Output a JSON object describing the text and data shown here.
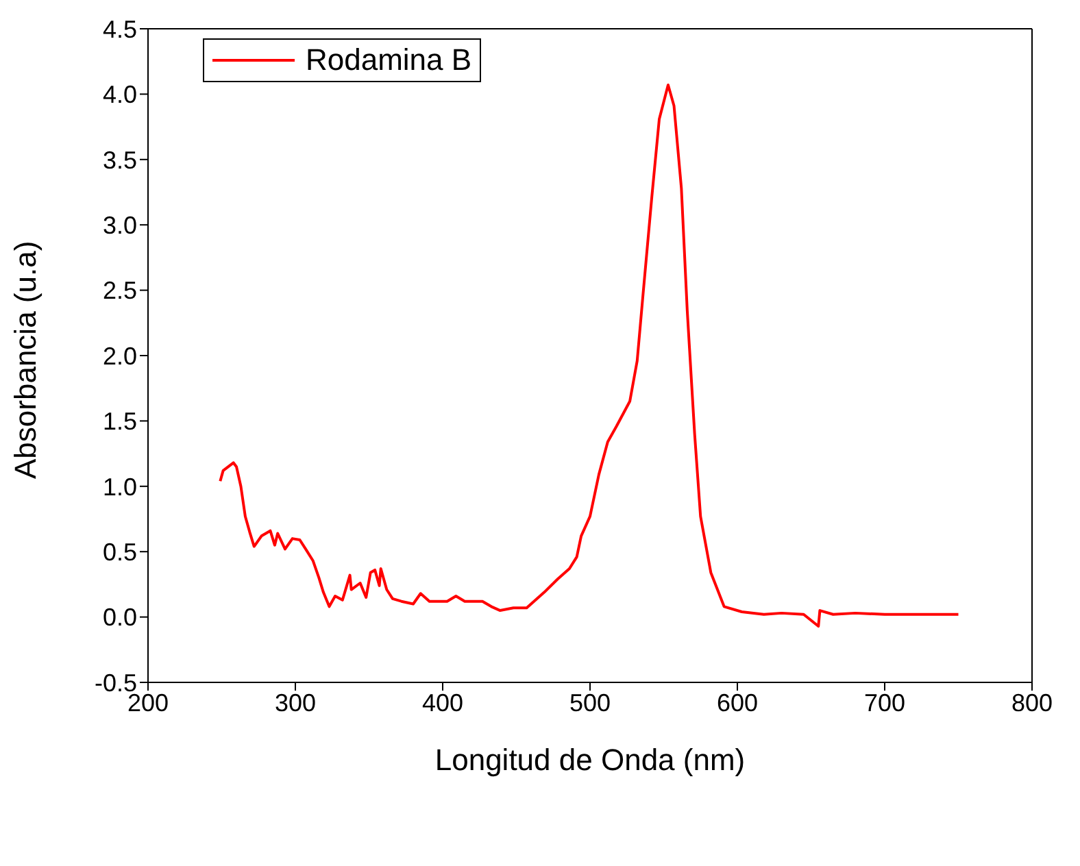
{
  "chart_data": {
    "type": "line",
    "xlabel": "Longitud de Onda (nm)",
    "ylabel": "Absorbancia (u.a)",
    "xlim": [
      200,
      800
    ],
    "xticks": [
      200,
      300,
      400,
      500,
      600,
      700,
      800
    ],
    "ylim": [
      -0.5,
      4.5
    ],
    "yticks": [
      -0.5,
      {
        "value": 0,
        "label": "0.0"
      },
      0.5,
      {
        "value": 1,
        "label": "1.0"
      },
      1.5,
      {
        "value": 2,
        "label": "2.0"
      },
      2.5,
      {
        "value": 3,
        "label": "3.0"
      },
      3.5,
      {
        "value": 4,
        "label": "4.0"
      },
      4.5
    ],
    "grid": false,
    "legend": "top left",
    "marker": "none",
    "line_style": "solid",
    "x": [
      249,
      251,
      258,
      260,
      263,
      266,
      269,
      272,
      277,
      283,
      286,
      288,
      293,
      298,
      303,
      307,
      312,
      316,
      319,
      323,
      327,
      332,
      337,
      338,
      344,
      348,
      351,
      354,
      357,
      358,
      362,
      366,
      372,
      380,
      385,
      391,
      403,
      409,
      415,
      427,
      433,
      439,
      448,
      457,
      463,
      469,
      478,
      486,
      491,
      494,
      500,
      506,
      512,
      518,
      527,
      532,
      536,
      542,
      547,
      553,
      557,
      562,
      566,
      571,
      575,
      582,
      591,
      603,
      618,
      630,
      645,
      655,
      656,
      665,
      680,
      700,
      720,
      740,
      750
    ],
    "series": [
      {
        "name": "Rodamina B",
        "color": "#ff0000",
        "values": [
          1.04,
          1.12,
          1.18,
          1.15,
          1.0,
          0.77,
          0.65,
          0.54,
          0.62,
          0.66,
          0.55,
          0.64,
          0.52,
          0.6,
          0.59,
          0.52,
          0.43,
          0.3,
          0.19,
          0.08,
          0.16,
          0.13,
          0.32,
          0.21,
          0.26,
          0.15,
          0.34,
          0.36,
          0.24,
          0.37,
          0.21,
          0.14,
          0.12,
          0.1,
          0.18,
          0.12,
          0.12,
          0.16,
          0.12,
          0.12,
          0.08,
          0.05,
          0.07,
          0.07,
          0.13,
          0.19,
          0.29,
          0.37,
          0.46,
          0.62,
          0.77,
          1.09,
          1.34,
          1.46,
          1.65,
          1.96,
          2.47,
          3.22,
          3.81,
          4.07,
          3.91,
          3.28,
          2.34,
          1.4,
          0.77,
          0.34,
          0.08,
          0.04,
          0.02,
          0.03,
          0.02,
          -0.07,
          0.05,
          0.02,
          0.03,
          0.02,
          0.02,
          0.02,
          0.02
        ]
      }
    ]
  }
}
